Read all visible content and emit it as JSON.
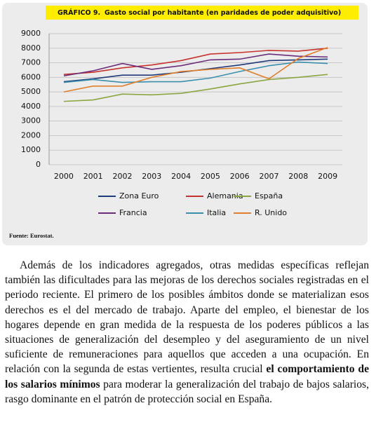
{
  "chart_data": {
    "type": "line",
    "figure_number": "GRÁFICO 9.",
    "title": "Gasto social por habitante (en paridades de poder adquisitivo)",
    "source": "Fuente: Eurostat.",
    "categories": [
      "2000",
      "2001",
      "2002",
      "2003",
      "2004",
      "2005",
      "2006",
      "2007",
      "2008",
      "2009"
    ],
    "ylim": [
      0,
      9000
    ],
    "yticks": [
      0,
      1000,
      2000,
      3000,
      4000,
      5000,
      6000,
      7000,
      8000,
      9000
    ],
    "grid": true,
    "legend": "bottom",
    "series": [
      {
        "name": "Zona Euro",
        "color": "#1f3a78",
        "values": [
          5700,
          5900,
          6150,
          6150,
          6350,
          6600,
          6850,
          7150,
          7200,
          7250
        ]
      },
      {
        "name": "Alemania",
        "color": "#c8322d",
        "values": [
          6200,
          6350,
          6650,
          6850,
          7150,
          7600,
          7700,
          7850,
          7800,
          8000
        ]
      },
      {
        "name": "España",
        "color": "#8aa640",
        "values": [
          4350,
          4450,
          4850,
          4800,
          4900,
          5200,
          5550,
          5850,
          6000,
          6200
        ]
      },
      {
        "name": "Francia",
        "color": "#6b2d7a",
        "values": [
          6100,
          6450,
          6950,
          6550,
          6800,
          7200,
          7250,
          7600,
          7450,
          7400
        ]
      },
      {
        "name": "Italia",
        "color": "#3a8fae",
        "values": [
          5650,
          5850,
          5650,
          5700,
          5700,
          5950,
          6400,
          6800,
          7050,
          6950
        ]
      },
      {
        "name": "R. Unido",
        "color": "#e07f2c",
        "values": [
          5000,
          5400,
          5400,
          6000,
          6400,
          6550,
          6650,
          5900,
          7300,
          8050
        ]
      }
    ]
  },
  "body": [
    "Además de los indicadores agregados, otras medidas específicas reflejan también las dificultades para las mejoras de los derechos sociales registradas en el periodo reciente. El primero de los posibles ámbitos donde se materializan esos derechos es el del mercado de trabajo. Aparte del empleo, el bienestar de los hogares depende en gran medida de la respuesta de los poderes públicos a las situaciones de generalización del desempleo y del aseguramiento de un nivel suficiente de remuneraciones para aquellos que acceden a una ocupación. En relación con la segunda de estas vertientes, resulta crucial ",
    "el comportamiento de los salarios mínimos",
    " para moderar la generalización del trabajo de bajos salarios, rasgo dominante en el patrón de protección social en España."
  ]
}
